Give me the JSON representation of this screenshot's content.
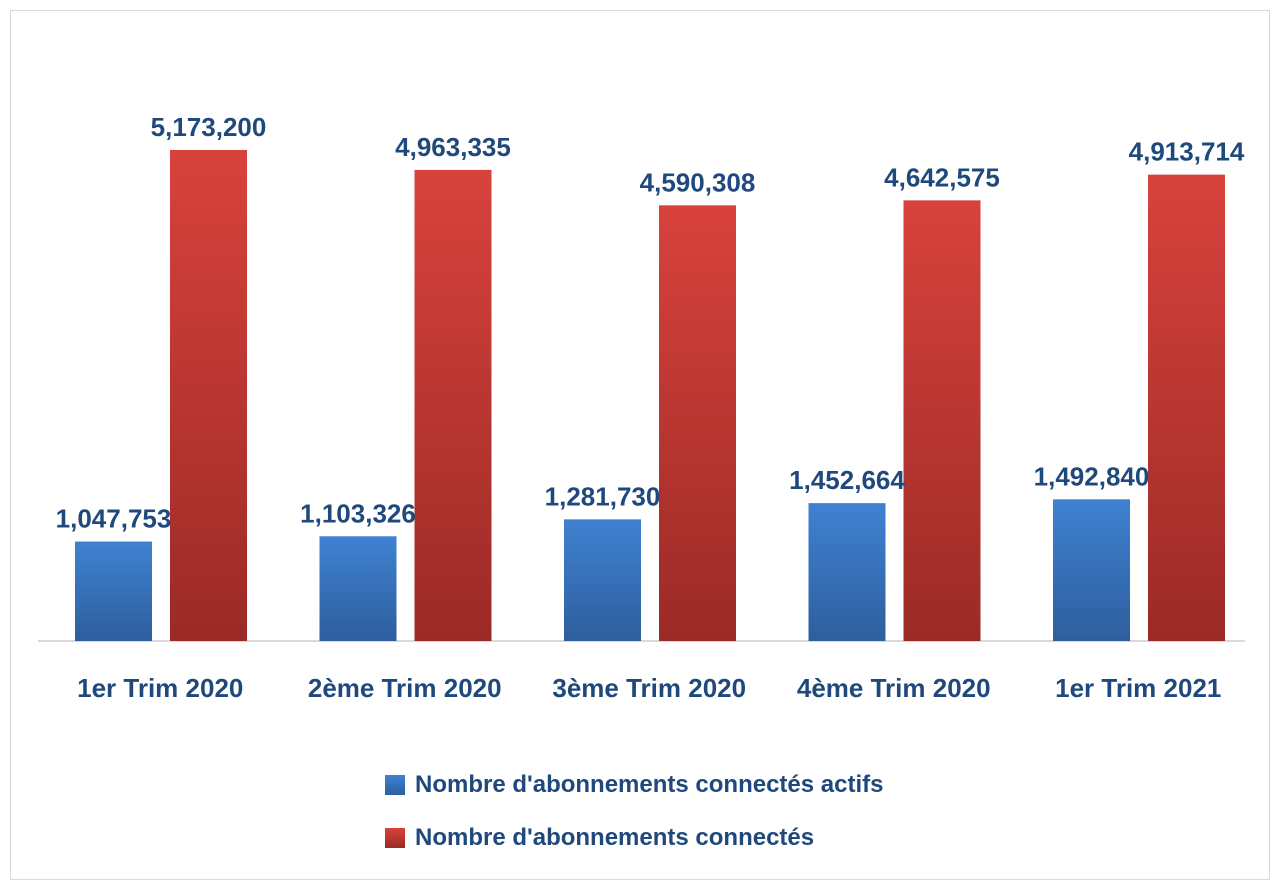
{
  "chart_data": {
    "type": "bar",
    "categories": [
      "1er Trim 2020",
      "2ème Trim 2020",
      "3ème Trim 2020",
      "4ème Trim 2020",
      "1er Trim 2021"
    ],
    "series": [
      {
        "name": "Nombre d'abonnements connectés actifs",
        "values": [
          1047753,
          1103326,
          1281730,
          1452664,
          1492840
        ],
        "labels": [
          "1,047,753",
          "1,103,326",
          "1,281,730",
          "1,452,664",
          "1,492,840"
        ],
        "color": "#3a78c3"
      },
      {
        "name": "Nombre d'abonnements connectés",
        "values": [
          5173200,
          4963335,
          4590308,
          4642575,
          4913714
        ],
        "labels": [
          "5,173,200",
          "4,963,335",
          "4,590,308",
          "4,642,575",
          "4,913,714"
        ],
        "color": "#c0392b"
      }
    ],
    "ylim": [
      0,
      5700000
    ],
    "grid": false,
    "legend_position": "bottom",
    "title": "",
    "xlabel": "",
    "ylabel": ""
  }
}
